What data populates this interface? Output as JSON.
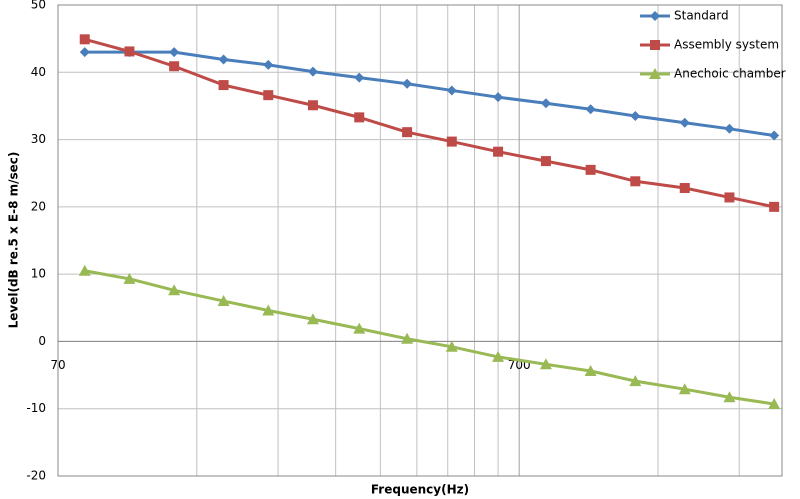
{
  "chart_data": {
    "type": "line",
    "x_label": "Frequency(Hz)",
    "y_label": "Level(dB re.5 x E-8 m/sec)",
    "x": [
      80,
      100,
      125,
      160,
      200,
      250,
      315,
      400,
      500,
      630,
      800,
      1000,
      1250,
      1600,
      2000,
      2500
    ],
    "x_log": true,
    "xlim": [
      70,
      2600
    ],
    "xticks": [
      70,
      700
    ],
    "x_minor_ticks": [
      140,
      210,
      280,
      350,
      420,
      490,
      560,
      630,
      1400,
      2100
    ],
    "ylim": [
      -20,
      50
    ],
    "yticks": [
      -20,
      -10,
      0,
      10,
      20,
      30,
      40,
      50
    ],
    "grid": true,
    "legend_position": "top-right",
    "series": [
      {
        "name": "Standard",
        "color": "#4a7ebb",
        "marker": "diamond",
        "values": [
          43,
          43,
          43,
          41.9,
          41.1,
          40.1,
          39.2,
          38.3,
          37.3,
          36.3,
          35.4,
          34.5,
          33.5,
          32.5,
          31.6,
          30.6
        ]
      },
      {
        "name": "Assembly system",
        "color": "#be4b48",
        "marker": "square",
        "values": [
          44.9,
          43.1,
          40.9,
          38.1,
          36.6,
          35.1,
          33.3,
          31.1,
          29.7,
          28.2,
          26.8,
          25.5,
          23.8,
          22.8,
          21.4,
          20
        ]
      },
      {
        "name": "Anechoic chamber",
        "color": "#98b954",
        "marker": "triangle",
        "values": [
          10.5,
          9.3,
          7.6,
          6,
          4.6,
          3.3,
          1.9,
          0.4,
          -0.8,
          -2.3,
          -3.4,
          -4.4,
          -5.9,
          -7.1,
          -8.3,
          -9.3
        ]
      }
    ]
  }
}
